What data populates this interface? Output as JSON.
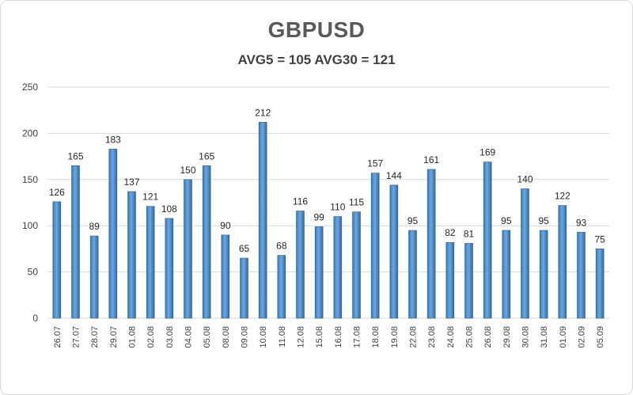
{
  "chart_data": {
    "type": "bar",
    "title": "GBPUSD",
    "subtitle": "AVG5 = 105 AVG30 = 121",
    "xlabel": "",
    "ylabel": "",
    "ylim": [
      0,
      250
    ],
    "yticks": [
      0,
      50,
      100,
      150,
      200,
      250
    ],
    "grid": true,
    "legend": "none",
    "bar_color": "#5b9bd5",
    "categories": [
      "26.07",
      "27.07",
      "28.07",
      "29.07",
      "01.08",
      "02.08",
      "03.08",
      "04.08",
      "05.08",
      "08.08",
      "09.08",
      "10.08",
      "11.08",
      "12.08",
      "15.08",
      "16.08",
      "17.08",
      "18.08",
      "19.08",
      "22.08",
      "23.08",
      "24.08",
      "25.08",
      "26.08",
      "29.08",
      "30.08",
      "31.08",
      "01.09",
      "02.09",
      "05.09"
    ],
    "values": [
      126,
      165,
      89,
      183,
      137,
      121,
      108,
      150,
      165,
      90,
      65,
      212,
      68,
      116,
      99,
      110,
      115,
      157,
      144,
      95,
      161,
      82,
      81,
      169,
      95,
      140,
      95,
      122,
      93,
      75
    ]
  }
}
